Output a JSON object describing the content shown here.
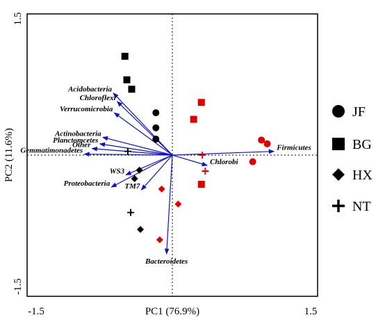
{
  "chart_data": {
    "type": "scatter",
    "xlabel": "PC1 (76.9%)",
    "ylabel": "PC2 (11.6%)",
    "xlim": [
      -1.5,
      1.5
    ],
    "ylim": [
      -1.5,
      1.5
    ],
    "x_ticks": [
      "-1.5",
      "1.5"
    ],
    "y_ticks": [
      "1.5",
      "-1.5"
    ],
    "reference_lines": [
      {
        "axis": "x",
        "value": 0
      },
      {
        "axis": "y",
        "value": 0
      }
    ],
    "legend_position": "right",
    "vector_color": "#1010cc",
    "vectors": [
      {
        "name": "Acidobacteria",
        "x": -0.61,
        "y": 0.66
      },
      {
        "name": "Chloroflexi",
        "x": -0.57,
        "y": 0.57
      },
      {
        "name": "Verrucomicrobia",
        "x": -0.6,
        "y": 0.45
      },
      {
        "name": "Actinobacteria",
        "x": -0.72,
        "y": 0.19
      },
      {
        "name": "Planctomcetes",
        "x": -0.75,
        "y": 0.12
      },
      {
        "name": "Other",
        "x": -0.83,
        "y": 0.07
      },
      {
        "name": "Gemmatimonadetes",
        "x": -0.91,
        "y": 0.01
      },
      {
        "name": "WS3",
        "x": -0.48,
        "y": -0.21
      },
      {
        "name": "Proteobacteria",
        "x": -0.63,
        "y": -0.34
      },
      {
        "name": "TM7",
        "x": -0.32,
        "y": -0.37
      },
      {
        "name": "Bacteroidetes",
        "x": -0.06,
        "y": -1.05
      },
      {
        "name": "Chlorobi",
        "x": 0.36,
        "y": -0.11
      },
      {
        "name": "Firmicutes",
        "x": 1.05,
        "y": 0.04
      }
    ],
    "series": [
      {
        "name": "JF",
        "marker": "circle",
        "points": [
          {
            "x": -0.17,
            "y": 0.45,
            "color": "#000000"
          },
          {
            "x": -0.17,
            "y": 0.29,
            "color": "#000000"
          },
          {
            "x": -0.17,
            "y": 0.17,
            "color": "#000000"
          },
          {
            "x": 0.92,
            "y": 0.16,
            "color": "#e00000"
          },
          {
            "x": 0.98,
            "y": 0.12,
            "color": "#e00000"
          },
          {
            "x": 0.83,
            "y": -0.07,
            "color": "#e00000"
          }
        ]
      },
      {
        "name": "BG",
        "marker": "square",
        "points": [
          {
            "x": -0.49,
            "y": 1.05,
            "color": "#000000"
          },
          {
            "x": -0.47,
            "y": 0.8,
            "color": "#000000"
          },
          {
            "x": -0.42,
            "y": 0.7,
            "color": "#000000"
          },
          {
            "x": 0.3,
            "y": 0.56,
            "color": "#e00000"
          },
          {
            "x": 0.22,
            "y": 0.38,
            "color": "#e00000"
          },
          {
            "x": 0.3,
            "y": -0.31,
            "color": "#e00000"
          }
        ]
      },
      {
        "name": "HX",
        "marker": "diamond",
        "points": [
          {
            "x": -0.34,
            "y": -0.16,
            "color": "#000000"
          },
          {
            "x": -0.39,
            "y": -0.25,
            "color": "#000000"
          },
          {
            "x": -0.33,
            "y": -0.79,
            "color": "#000000"
          },
          {
            "x": -0.11,
            "y": -0.36,
            "color": "#e00000"
          },
          {
            "x": 0.06,
            "y": -0.52,
            "color": "#e00000"
          },
          {
            "x": -0.13,
            "y": -0.9,
            "color": "#e00000"
          }
        ]
      },
      {
        "name": "NT",
        "marker": "plus",
        "points": [
          {
            "x": -0.46,
            "y": 0.04,
            "color": "#000000"
          },
          {
            "x": -0.43,
            "y": -0.61,
            "color": "#000000"
          },
          {
            "x": 0.31,
            "y": 0.0,
            "color": "#e00000"
          },
          {
            "x": 0.34,
            "y": -0.17,
            "color": "#e00000"
          }
        ]
      }
    ]
  }
}
